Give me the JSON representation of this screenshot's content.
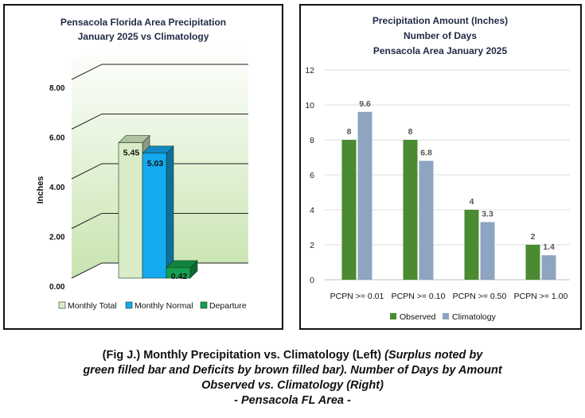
{
  "left_chart": {
    "title_line1": "Pensacola Florida Area Precipitation",
    "title_line2": "January 2025 vs Climatology",
    "ylabel": "Inches",
    "ticks": [
      "0.00",
      "2.00",
      "4.00",
      "6.00",
      "8.00"
    ],
    "colors": {
      "monthly_total": "#d8ecc8",
      "monthly_normal": "#14aaf0",
      "departure": "#14a050",
      "floor": "#c8e4b0"
    }
  },
  "right_chart": {
    "title_line1": "Precipitation Amount (Inches)",
    "title_line2": "Number of Days",
    "title_line3": "Pensacola Area January 2025",
    "colors": {
      "observed": "#4a8a30",
      "climatology": "#8ea4c0"
    }
  },
  "chart_data": [
    {
      "type": "bar",
      "title": "Pensacola Florida Area Precipitation January 2025 vs Climatology",
      "ylabel": "Inches",
      "ylim": [
        0,
        8.8
      ],
      "grid": true,
      "legend_position": "bottom",
      "categories": [
        "Monthly Total",
        "Monthly Normal",
        "Departure"
      ],
      "values": [
        5.45,
        5.03,
        0.42
      ],
      "labels": [
        "5.45",
        "5.03",
        "0.42"
      ]
    },
    {
      "type": "bar",
      "title": "Precipitation Amount (Inches) Number of Days Pensacola Area January 2025",
      "categories": [
        "PCPN >= 0.01",
        "PCPN >= 0.10",
        "PCPN >= 0.50",
        "PCPN >= 1.00"
      ],
      "ylim": [
        0,
        12
      ],
      "yticks": [
        "0",
        "2",
        "4",
        "6",
        "8",
        "10",
        "12"
      ],
      "grid": true,
      "legend_position": "bottom",
      "series": [
        {
          "name": "Observed",
          "values": [
            8,
            8,
            4,
            2
          ],
          "labels": [
            "8",
            "8",
            "4",
            "2"
          ]
        },
        {
          "name": "Climatology",
          "values": [
            9.6,
            6.8,
            3.3,
            1.4
          ],
          "labels": [
            "9.6",
            "6.8",
            "3.3",
            "1.4"
          ]
        }
      ]
    }
  ],
  "caption": {
    "line1_normal": "(Fig J.) Monthly Precipitation vs. Climatology (Left) ",
    "line1_italic": "(Surplus noted by",
    "line2": "green filled bar and Deficits by brown filled bar). Number of Days by Amount",
    "line3": "Observed vs. Climatology (Right)",
    "line4": "- Pensacola FL Area -"
  }
}
